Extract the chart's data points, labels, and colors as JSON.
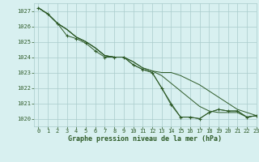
{
  "title": "Graphe pression niveau de la mer (hPa)",
  "background_color": "#d8f0f0",
  "grid_color": "#aacccc",
  "line_color": "#2d5a27",
  "marker_color": "#2d5a27",
  "xlim": [
    -0.5,
    23
  ],
  "ylim": [
    1019.5,
    1027.5
  ],
  "xticks": [
    0,
    1,
    2,
    3,
    4,
    5,
    6,
    7,
    8,
    9,
    10,
    11,
    12,
    13,
    14,
    15,
    16,
    17,
    18,
    19,
    20,
    21,
    22,
    23
  ],
  "yticks": [
    1020,
    1021,
    1022,
    1023,
    1024,
    1025,
    1026,
    1027
  ],
  "series": [
    [
      1027.2,
      1026.8,
      1026.2,
      1025.4,
      1025.2,
      1024.9,
      1024.4,
      1024.0,
      1024.0,
      1024.0,
      1023.5,
      1023.2,
      1023.0,
      1022.0,
      1020.9,
      1020.1,
      1020.1,
      1020.0,
      1020.4,
      1020.6,
      1020.5,
      1020.5,
      1020.1,
      1020.2
    ],
    [
      1027.2,
      1026.8,
      1026.2,
      1025.8,
      1025.3,
      1025.0,
      1024.6,
      1024.1,
      1024.0,
      1024.0,
      1023.7,
      1023.3,
      1023.1,
      1023.0,
      1023.0,
      1022.8,
      1022.5,
      1022.2,
      1021.8,
      1021.4,
      1021.0,
      1020.6,
      1020.4,
      1020.2
    ],
    [
      1027.2,
      1026.8,
      1026.2,
      1025.8,
      1025.3,
      1025.0,
      1024.6,
      1024.1,
      1024.0,
      1024.0,
      1023.5,
      1023.2,
      1023.0,
      1022.0,
      1021.0,
      1020.1,
      1020.1,
      1020.0,
      1020.4,
      1020.6,
      1020.5,
      1020.5,
      1020.1,
      1020.2
    ],
    [
      1027.2,
      1026.8,
      1026.2,
      1025.8,
      1025.3,
      1025.0,
      1024.6,
      1024.1,
      1024.0,
      1024.0,
      1023.7,
      1023.3,
      1023.1,
      1022.8,
      1022.3,
      1021.8,
      1021.3,
      1020.8,
      1020.5,
      1020.4,
      1020.4,
      1020.4,
      1020.1,
      1020.2
    ]
  ],
  "tick_fontsize": 5.0,
  "label_fontsize": 6.0
}
